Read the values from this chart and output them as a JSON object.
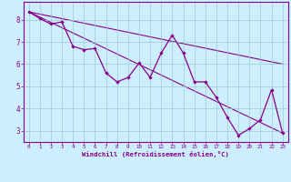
{
  "xlabel": "Windchill (Refroidissement éolien,°C)",
  "bg_color": "#cceeff",
  "line_color": "#880088",
  "grid_color": "#99cccc",
  "axis_color": "#880088",
  "xlim": [
    -0.5,
    23.5
  ],
  "ylim": [
    2.5,
    8.8
  ],
  "xticks": [
    0,
    1,
    2,
    3,
    4,
    5,
    6,
    7,
    8,
    9,
    10,
    11,
    12,
    13,
    14,
    15,
    16,
    17,
    18,
    19,
    20,
    21,
    22,
    23
  ],
  "yticks": [
    3,
    4,
    5,
    6,
    7,
    8
  ],
  "line1_x": [
    0,
    1,
    2,
    3,
    4,
    5,
    6,
    7,
    8,
    9,
    10,
    11,
    12,
    13,
    14,
    15,
    16,
    17,
    18,
    19,
    20,
    21,
    22,
    23
  ],
  "line1_y": [
    8.35,
    8.05,
    7.8,
    7.9,
    6.8,
    6.65,
    6.7,
    5.6,
    5.2,
    5.4,
    6.05,
    5.4,
    6.5,
    7.3,
    6.5,
    5.2,
    5.2,
    4.5,
    3.6,
    2.8,
    3.1,
    3.5,
    4.85,
    2.9
  ],
  "trend1_x": [
    0,
    23
  ],
  "trend1_y": [
    8.35,
    6.0
  ],
  "trend2_x": [
    0,
    23
  ],
  "trend2_y": [
    8.35,
    2.9
  ]
}
